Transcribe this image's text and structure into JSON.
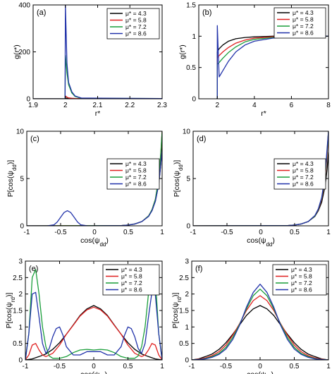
{
  "series_colors": [
    "#000000",
    "#e02020",
    "#1a9e3a",
    "#2233aa"
  ],
  "chart_data": [
    {
      "panel": "(a)",
      "type": "line",
      "ylabel": "g(r*)",
      "xlabel": "r*",
      "xlim": [
        1.9,
        2.3
      ],
      "ylim": [
        0,
        400
      ],
      "xticks": [
        1.9,
        2,
        2.1,
        2.2,
        2.3
      ],
      "xticklabels": [
        "1.9",
        "2",
        "2.1",
        "2.2",
        "2.3"
      ],
      "yticks": [
        0,
        200,
        400
      ],
      "yticklabels": [
        "0",
        "200",
        "400"
      ],
      "legend": "top-right",
      "series": [
        {
          "name": "μ* = 4.3",
          "x": [
            1.9,
            1.999,
            2.0,
            2.005,
            2.01,
            2.02,
            2.03,
            2.05,
            2.3
          ],
          "y": [
            0,
            0,
            2.3,
            2.1,
            1.8,
            1.5,
            1.3,
            1.1,
            1.0
          ]
        },
        {
          "name": "μ* = 5.8",
          "x": [
            1.9,
            1.999,
            2.0,
            2.005,
            2.01,
            2.02,
            2.03,
            2.05,
            2.3
          ],
          "y": [
            0,
            0,
            12,
            7,
            4,
            2,
            1.4,
            1.1,
            1.0
          ]
        },
        {
          "name": "μ* = 7.2",
          "x": [
            1.9,
            1.999,
            2.0,
            2.005,
            2.01,
            2.02,
            2.03,
            2.05,
            2.3
          ],
          "y": [
            0,
            0,
            185,
            110,
            60,
            25,
            10,
            2,
            1.0
          ]
        },
        {
          "name": "μ* = 8.6",
          "x": [
            1.9,
            1.999,
            2.0,
            2.005,
            2.01,
            2.02,
            2.03,
            2.05,
            2.3
          ],
          "y": [
            0,
            0,
            400,
            150,
            70,
            30,
            12,
            3,
            1.0
          ]
        }
      ]
    },
    {
      "panel": "(b)",
      "type": "line",
      "ylabel": "g(r*)",
      "xlabel": "r*",
      "xlim": [
        1,
        8
      ],
      "ylim": [
        0,
        1.5
      ],
      "xticks": [
        2,
        4,
        6,
        8
      ],
      "xticklabels": [
        "2",
        "4",
        "6",
        "8"
      ],
      "yticks": [
        0,
        0.5,
        1,
        1.5
      ],
      "yticklabels": [
        "0",
        "0.5",
        "1",
        "1.5"
      ],
      "legend": "top-right",
      "series": [
        {
          "name": "μ* = 4.3",
          "x": [
            1.95,
            2.0,
            2.0,
            2.1,
            2.3,
            2.6,
            3.0,
            3.5,
            4.0,
            5.0,
            8.0
          ],
          "y": [
            0,
            0,
            0.75,
            0.8,
            0.86,
            0.92,
            0.96,
            0.98,
            0.99,
            1.0,
            1.0
          ]
        },
        {
          "name": "μ* = 5.8",
          "x": [
            1.95,
            2.0,
            2.0,
            2.1,
            2.3,
            2.6,
            3.0,
            3.5,
            4.0,
            5.0,
            6.0,
            8.0
          ],
          "y": [
            0,
            0,
            0.65,
            0.69,
            0.75,
            0.82,
            0.89,
            0.94,
            0.97,
            0.99,
            1.0,
            1.0
          ]
        },
        {
          "name": "μ* = 7.2",
          "x": [
            1.95,
            2.0,
            2.0,
            2.1,
            2.3,
            2.6,
            3.0,
            3.5,
            4.0,
            5.0,
            6.0,
            8.0
          ],
          "y": [
            0,
            0,
            0.55,
            0.58,
            0.65,
            0.74,
            0.83,
            0.91,
            0.95,
            0.98,
            0.99,
            1.0
          ]
        },
        {
          "name": "μ* = 8.6",
          "x": [
            1.95,
            2.0,
            2.0,
            2.1,
            2.3,
            2.6,
            3.0,
            3.5,
            4.0,
            5.0,
            6.0,
            7.0,
            8.0
          ],
          "y": [
            0,
            0,
            1.17,
            0.35,
            0.45,
            0.6,
            0.75,
            0.86,
            0.92,
            0.97,
            0.99,
            1.0,
            1.0
          ]
        }
      ]
    },
    {
      "panel": "(c)",
      "type": "line",
      "ylabel": "P[cos(ψdd)]",
      "xlabel": "cos(ψdd)",
      "xlim": [
        -1,
        1
      ],
      "ylim": [
        0,
        10
      ],
      "xticks": [
        -1,
        -0.5,
        0,
        0.5,
        1
      ],
      "xticklabels": [
        "-1",
        "-0.5",
        "0",
        "0.5",
        "1"
      ],
      "yticks": [
        0,
        5,
        10
      ],
      "yticklabels": [
        "0",
        "5",
        "10"
      ],
      "legend": "center-right",
      "series": [
        {
          "name": "μ* = 4.3",
          "x": [
            -1,
            0.4,
            0.5,
            0.6,
            0.7,
            0.8,
            0.85,
            0.9,
            0.95,
            0.98,
            1.0
          ],
          "y": [
            0,
            0.02,
            0.08,
            0.2,
            0.45,
            1.0,
            1.6,
            2.6,
            4.4,
            6.5,
            8.5
          ]
        },
        {
          "name": "μ* = 5.8",
          "x": [
            -1,
            0.4,
            0.5,
            0.6,
            0.7,
            0.8,
            0.85,
            0.9,
            0.95,
            0.98,
            1.0
          ],
          "y": [
            0,
            0.02,
            0.08,
            0.2,
            0.45,
            1.05,
            1.7,
            2.8,
            5.0,
            7.5,
            10
          ]
        },
        {
          "name": "μ* = 7.2",
          "x": [
            -1,
            0.4,
            0.5,
            0.6,
            0.7,
            0.8,
            0.85,
            0.9,
            0.95,
            0.98,
            1.0
          ],
          "y": [
            0,
            0.02,
            0.08,
            0.2,
            0.45,
            1.05,
            1.7,
            2.8,
            5.1,
            7.7,
            10
          ]
        },
        {
          "name": "μ* = 8.6",
          "x": [
            -1,
            -0.7,
            -0.6,
            -0.55,
            -0.5,
            -0.45,
            -0.4,
            -0.35,
            -0.3,
            -0.25,
            -0.2,
            -0.1,
            0.4,
            0.5,
            0.6,
            0.7,
            0.8,
            0.85,
            0.9,
            0.95,
            0.98,
            1.0
          ],
          "y": [
            0,
            0,
            0.1,
            0.4,
            0.9,
            1.4,
            1.6,
            1.4,
            0.9,
            0.4,
            0.1,
            0,
            0.02,
            0.08,
            0.2,
            0.45,
            1.0,
            1.6,
            2.6,
            4.4,
            6.5,
            8.0
          ]
        }
      ]
    },
    {
      "panel": "(d)",
      "type": "line",
      "ylabel": "P[cos(ψdd)]",
      "xlabel": "cos(ψdd)",
      "xlim": [
        -1,
        1
      ],
      "ylim": [
        0,
        10
      ],
      "xticks": [
        -1,
        -0.5,
        0,
        0.5,
        1
      ],
      "xticklabels": [
        "-1",
        "-0.5",
        "0",
        "0.5",
        "1"
      ],
      "yticks": [
        0,
        5,
        10
      ],
      "yticklabels": [
        "0",
        "5",
        "10"
      ],
      "legend": "center-right",
      "series": [
        {
          "name": "μ* = 4.3",
          "x": [
            -1,
            0.4,
            0.5,
            0.6,
            0.7,
            0.8,
            0.85,
            0.9,
            0.95,
            0.98,
            1.0
          ],
          "y": [
            0,
            0.02,
            0.08,
            0.2,
            0.45,
            1.0,
            1.6,
            2.5,
            4.2,
            6.0,
            7.8
          ]
        },
        {
          "name": "μ* = 5.8",
          "x": [
            -1,
            0.4,
            0.5,
            0.6,
            0.7,
            0.8,
            0.85,
            0.9,
            0.95,
            0.98,
            1.0
          ],
          "y": [
            0,
            0.02,
            0.08,
            0.2,
            0.45,
            1.05,
            1.7,
            2.8,
            5.0,
            7.5,
            10
          ]
        },
        {
          "name": "μ* = 7.2",
          "x": [
            -1,
            0.4,
            0.5,
            0.6,
            0.7,
            0.8,
            0.85,
            0.9,
            0.95,
            0.98,
            1.0
          ],
          "y": [
            0,
            0.02,
            0.08,
            0.2,
            0.45,
            1.05,
            1.75,
            2.9,
            5.2,
            7.9,
            10
          ]
        },
        {
          "name": "μ* = 8.6",
          "x": [
            -1,
            0.4,
            0.5,
            0.6,
            0.7,
            0.8,
            0.85,
            0.9,
            0.95,
            0.98,
            1.0
          ],
          "y": [
            0,
            0.02,
            0.08,
            0.2,
            0.45,
            1.1,
            1.8,
            3.0,
            5.4,
            8.2,
            10
          ]
        }
      ]
    },
    {
      "panel": "(e)",
      "type": "line",
      "ylabel": "P[cos(ψrd)]",
      "xlabel": "cos(ψrd)",
      "xlim": [
        -1,
        1
      ],
      "ylim": [
        0,
        3
      ],
      "xticks": [
        -1,
        -0.5,
        0,
        0.5,
        1
      ],
      "xticklabels": [
        "-1",
        "-0.5",
        "0",
        "0.5",
        "1"
      ],
      "yticks": [
        0,
        0.5,
        1,
        1.5,
        2,
        2.5,
        3
      ],
      "yticklabels": [
        "0",
        "0.5",
        "1",
        "1.5",
        "2",
        "2.5",
        "3"
      ],
      "legend": "top-right",
      "series": [
        {
          "name": "μ* = 4.3",
          "x": [
            -1.0,
            -0.9,
            -0.8,
            -0.7,
            -0.6,
            -0.5,
            -0.4,
            -0.3,
            -0.2,
            -0.1,
            0.0,
            0.1,
            0.2,
            0.3,
            0.4,
            0.5,
            0.6,
            0.7,
            0.8,
            0.9,
            1.0
          ],
          "y": [
            0.0,
            0.03,
            0.1,
            0.18,
            0.32,
            0.52,
            0.78,
            1.06,
            1.35,
            1.55,
            1.65,
            1.55,
            1.35,
            1.06,
            0.78,
            0.52,
            0.32,
            0.18,
            0.1,
            0.03,
            0.0
          ]
        },
        {
          "name": "μ* = 5.8",
          "x": [
            -1.0,
            -0.95,
            -0.9,
            -0.85,
            -0.8,
            -0.75,
            -0.7,
            -0.6,
            -0.5,
            -0.4,
            -0.3,
            -0.2,
            -0.1,
            0.0,
            0.1,
            0.2,
            0.3,
            0.4,
            0.5,
            0.6,
            0.7,
            0.75,
            0.8,
            0.85,
            0.9,
            0.95,
            1.0
          ],
          "y": [
            0.0,
            0.15,
            0.45,
            0.5,
            0.3,
            0.15,
            0.1,
            0.2,
            0.45,
            0.78,
            1.05,
            1.33,
            1.52,
            1.6,
            1.52,
            1.33,
            1.05,
            0.78,
            0.45,
            0.2,
            0.1,
            0.15,
            0.3,
            0.5,
            0.45,
            0.15,
            0.0
          ]
        },
        {
          "name": "μ* = 7.2",
          "x": [
            -1.0,
            -0.95,
            -0.9,
            -0.85,
            -0.8,
            -0.75,
            -0.7,
            -0.65,
            -0.6,
            -0.5,
            -0.4,
            -0.3,
            -0.2,
            -0.1,
            0.0,
            0.1,
            0.2,
            0.3,
            0.4,
            0.5,
            0.6,
            0.65,
            0.7,
            0.75,
            0.8,
            0.85,
            0.9,
            0.95,
            1.0
          ],
          "y": [
            0.0,
            0.8,
            2.5,
            2.75,
            2.0,
            1.0,
            0.4,
            0.12,
            0.05,
            0.05,
            0.1,
            0.22,
            0.3,
            0.32,
            0.3,
            0.32,
            0.3,
            0.22,
            0.1,
            0.05,
            0.05,
            0.12,
            0.4,
            1.0,
            2.0,
            2.75,
            2.5,
            0.8,
            0.0
          ]
        },
        {
          "name": "μ* = 8.6",
          "x": [
            -1.0,
            -0.95,
            -0.9,
            -0.85,
            -0.8,
            -0.75,
            -0.7,
            -0.65,
            -0.6,
            -0.55,
            -0.5,
            -0.45,
            -0.4,
            -0.3,
            -0.2,
            -0.1,
            0.0,
            0.1,
            0.2,
            0.3,
            0.4,
            0.45,
            0.5,
            0.55,
            0.6,
            0.65,
            0.7,
            0.75,
            0.8,
            0.85,
            0.9,
            0.95,
            1.0
          ],
          "y": [
            0.0,
            0.8,
            2.0,
            2.05,
            1.3,
            0.5,
            0.2,
            0.35,
            0.7,
            0.95,
            1.0,
            0.75,
            0.4,
            0.15,
            0.15,
            0.25,
            0.25,
            0.25,
            0.15,
            0.15,
            0.4,
            0.75,
            1.0,
            0.95,
            0.7,
            0.35,
            0.2,
            0.5,
            1.3,
            2.05,
            2.0,
            0.8,
            0.0
          ]
        }
      ]
    },
    {
      "panel": "(f)",
      "type": "line",
      "ylabel": "P[cos(ψrd)]",
      "xlabel": "cos(ψrd)",
      "xlim": [
        -1,
        1
      ],
      "ylim": [
        0,
        3
      ],
      "xticks": [
        -1,
        -0.5,
        0,
        0.5,
        1
      ],
      "xticklabels": [
        "-1",
        "-0.5",
        "0",
        "0.5",
        "1"
      ],
      "yticks": [
        0,
        0.5,
        1,
        1.5,
        2,
        2.5,
        3
      ],
      "yticklabels": [
        "0",
        "0.5",
        "1",
        "1.5",
        "2",
        "2.5",
        "3"
      ],
      "legend": "top-right",
      "series": [
        {
          "name": "μ* = 4.3",
          "x": [
            -1.0,
            -0.9,
            -0.8,
            -0.7,
            -0.6,
            -0.5,
            -0.4,
            -0.3,
            -0.2,
            -0.1,
            0.0,
            0.1,
            0.2,
            0.3,
            0.4,
            0.5,
            0.6,
            0.7,
            0.8,
            0.9,
            1.0
          ],
          "y": [
            0.0,
            0.03,
            0.1,
            0.18,
            0.32,
            0.52,
            0.78,
            1.06,
            1.35,
            1.55,
            1.65,
            1.55,
            1.35,
            1.06,
            0.78,
            0.52,
            0.32,
            0.18,
            0.1,
            0.03,
            0.0
          ]
        },
        {
          "name": "μ* = 5.8",
          "x": [
            -1.0,
            -0.9,
            -0.8,
            -0.7,
            -0.6,
            -0.5,
            -0.4,
            -0.3,
            -0.2,
            -0.1,
            0.0,
            0.1,
            0.2,
            0.3,
            0.4,
            0.5,
            0.6,
            0.7,
            0.8,
            0.9,
            1.0
          ],
          "y": [
            0.0,
            0.02,
            0.06,
            0.13,
            0.25,
            0.45,
            0.75,
            1.1,
            1.5,
            1.8,
            1.95,
            1.8,
            1.5,
            1.1,
            0.75,
            0.45,
            0.25,
            0.13,
            0.06,
            0.02,
            0.0
          ]
        },
        {
          "name": "μ* = 7.2",
          "x": [
            -1.0,
            -0.9,
            -0.8,
            -0.7,
            -0.6,
            -0.5,
            -0.4,
            -0.3,
            -0.2,
            -0.1,
            0.0,
            0.1,
            0.2,
            0.3,
            0.4,
            0.5,
            0.6,
            0.7,
            0.8,
            0.9,
            1.0
          ],
          "y": [
            0.0,
            0.01,
            0.04,
            0.1,
            0.2,
            0.38,
            0.68,
            1.08,
            1.55,
            1.95,
            2.15,
            1.95,
            1.55,
            1.08,
            0.68,
            0.38,
            0.2,
            0.1,
            0.04,
            0.01,
            0.0
          ]
        },
        {
          "name": "μ* = 8.6",
          "x": [
            -1.0,
            -0.9,
            -0.8,
            -0.7,
            -0.6,
            -0.5,
            -0.4,
            -0.3,
            -0.2,
            -0.1,
            0.0,
            0.1,
            0.2,
            0.3,
            0.4,
            0.5,
            0.6,
            0.7,
            0.8,
            0.9,
            1.0
          ],
          "y": [
            0.0,
            0.01,
            0.03,
            0.08,
            0.17,
            0.33,
            0.62,
            1.05,
            1.6,
            2.05,
            2.3,
            2.05,
            1.6,
            1.05,
            0.62,
            0.33,
            0.17,
            0.08,
            0.03,
            0.01,
            0.0
          ]
        }
      ]
    }
  ]
}
